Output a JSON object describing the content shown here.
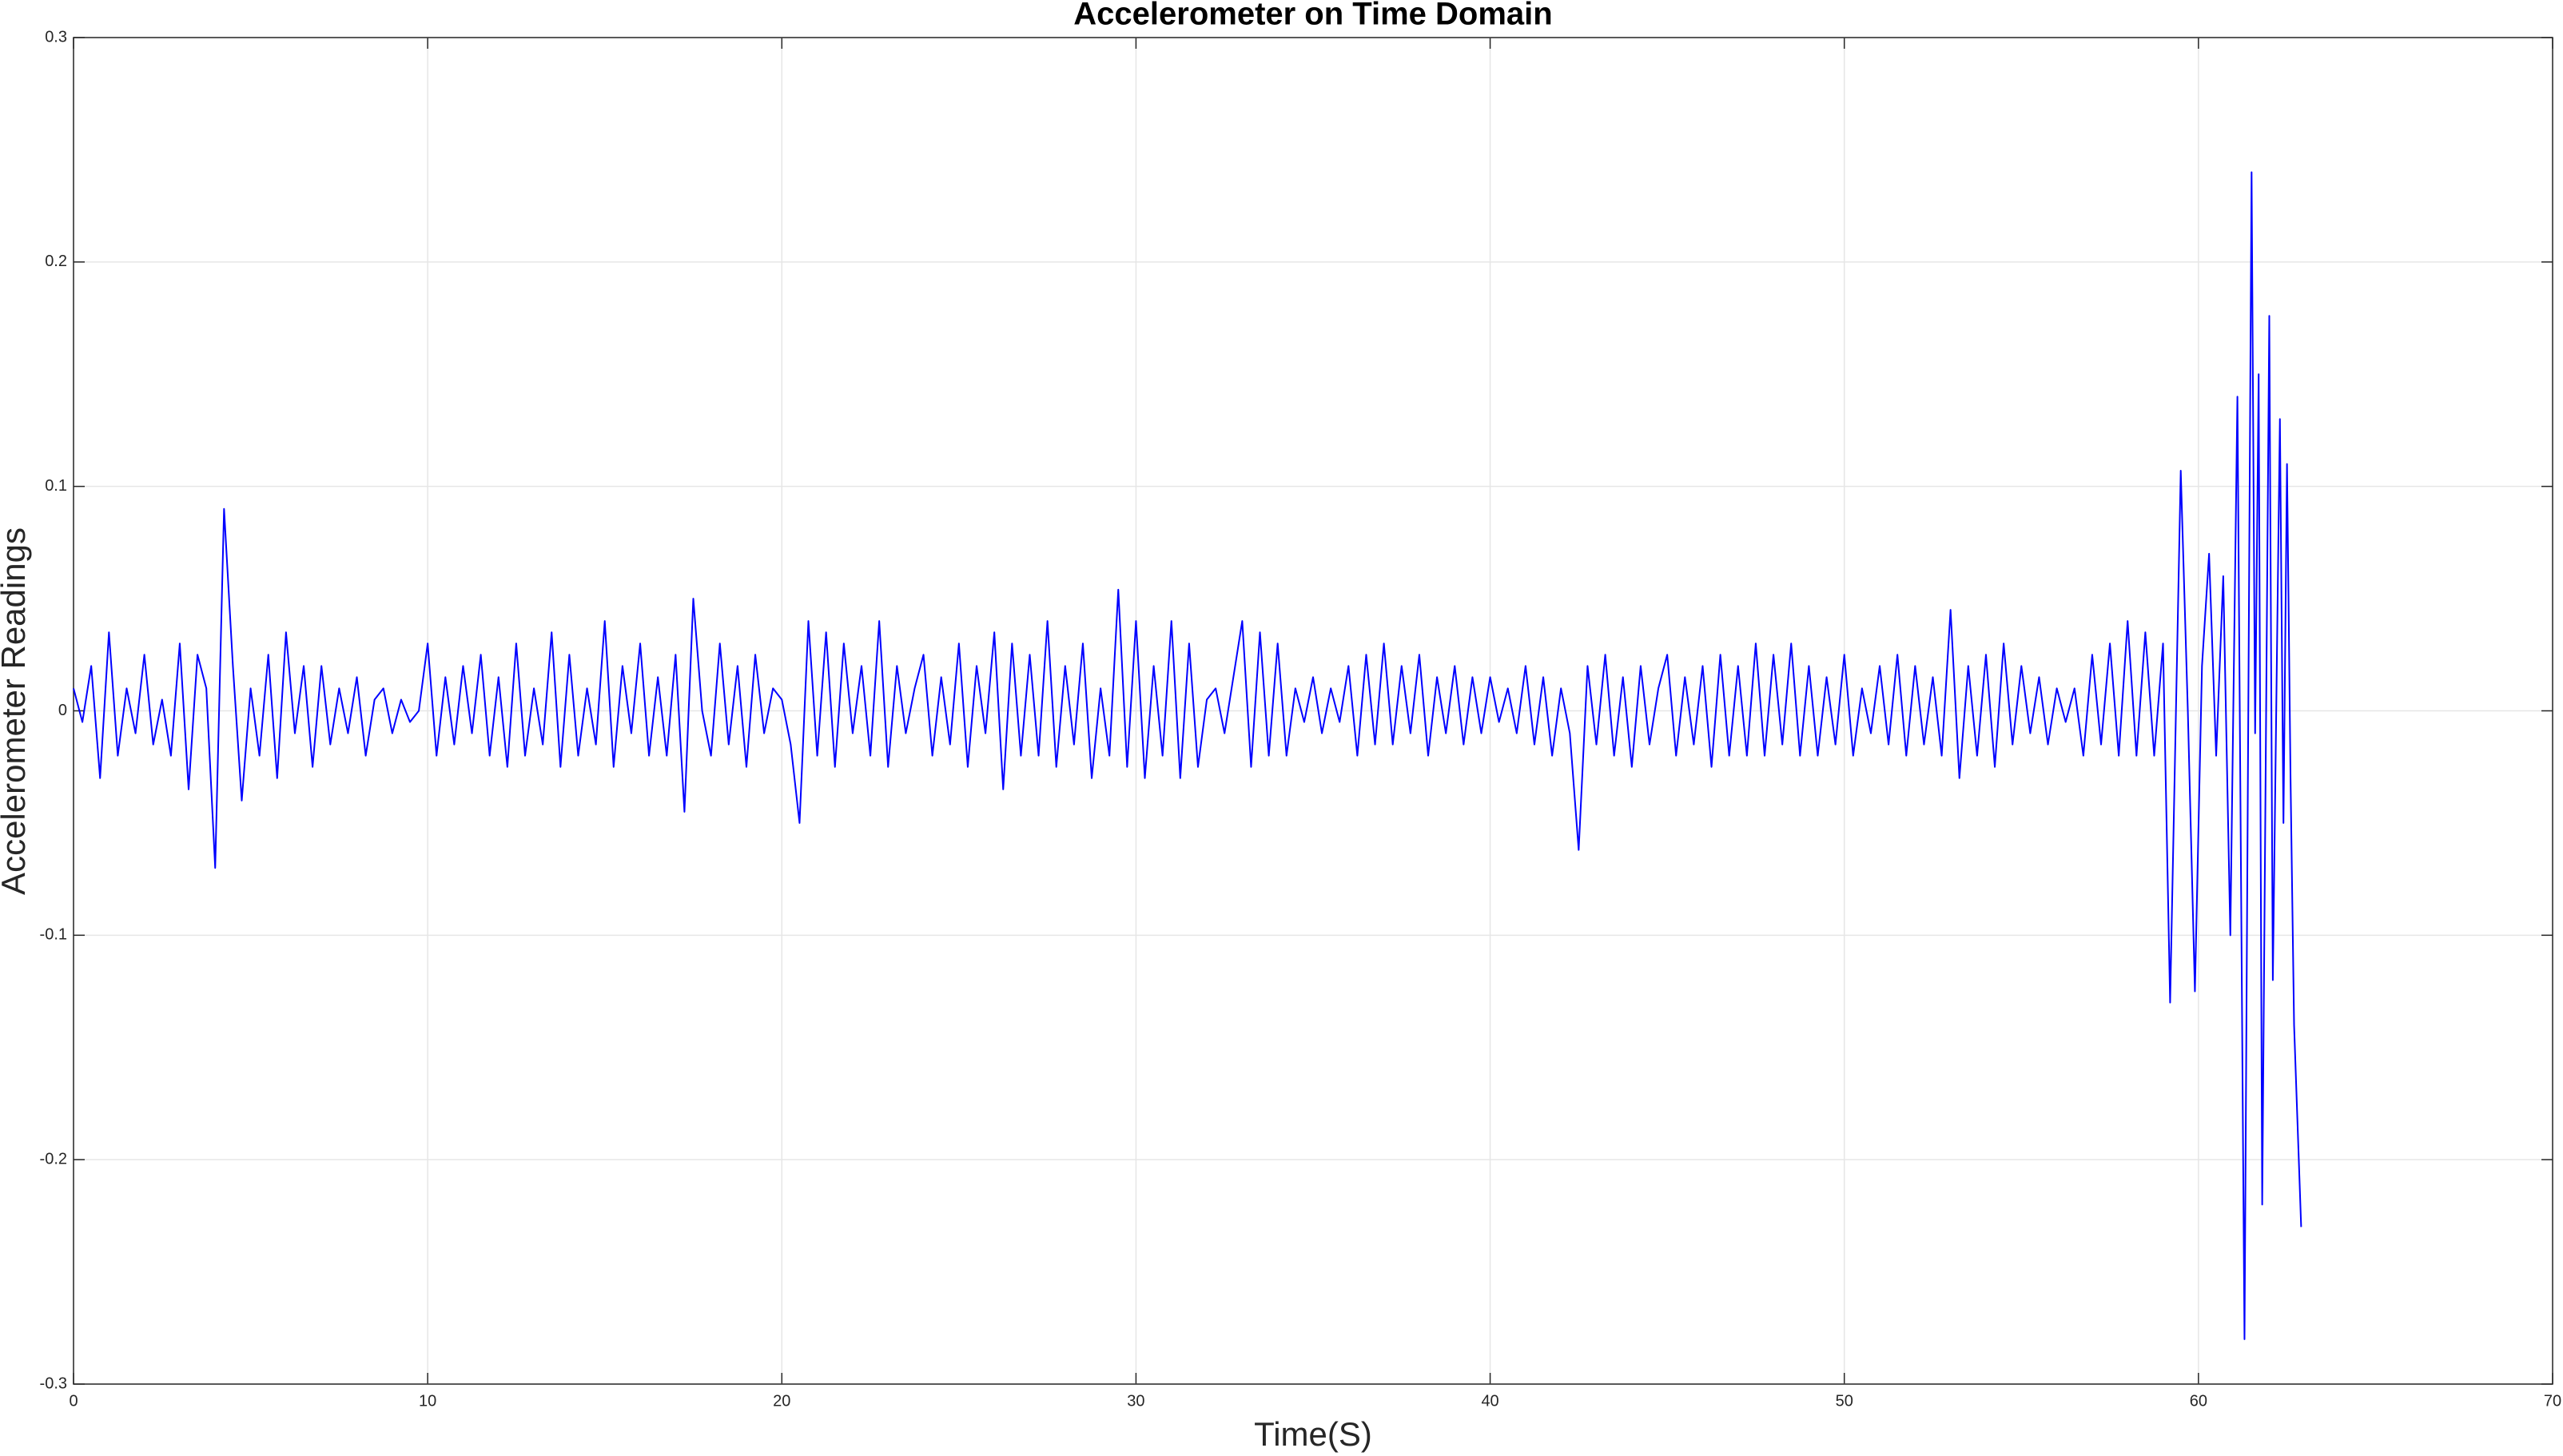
{
  "chart_data": {
    "type": "line",
    "title": "Accelerometer on Time Domain",
    "x_label": "Time(S)",
    "y_label": "Accelerometer Readings",
    "xlim": [
      0,
      70
    ],
    "xticks": [
      0,
      10,
      20,
      30,
      40,
      50,
      60,
      70
    ],
    "ylim": [
      -0.3,
      0.3
    ],
    "yticks": [
      -0.3,
      -0.2,
      -0.1,
      0,
      0.1,
      0.2,
      0.3
    ],
    "grid": true,
    "series": [
      {
        "color": "#0000ff",
        "x": [
          0,
          0.25,
          0.5,
          0.75,
          1,
          1.25,
          1.5,
          1.75,
          2,
          2.25,
          2.5,
          2.75,
          3,
          3.25,
          3.5,
          3.75,
          4,
          4.25,
          4.5,
          4.75,
          5,
          5.25,
          5.5,
          5.75,
          6,
          6.25,
          6.5,
          6.75,
          7,
          7.25,
          7.5,
          7.75,
          8,
          8.25,
          8.5,
          8.75,
          9,
          9.25,
          9.5,
          9.75,
          10,
          10.25,
          10.5,
          10.75,
          11,
          11.25,
          11.5,
          11.75,
          12,
          12.25,
          12.5,
          12.75,
          13,
          13.25,
          13.5,
          13.75,
          14,
          14.25,
          14.5,
          14.75,
          15,
          15.25,
          15.5,
          15.75,
          16,
          16.25,
          16.5,
          16.75,
          17,
          17.25,
          17.5,
          17.75,
          18,
          18.25,
          18.5,
          18.75,
          19,
          19.25,
          19.5,
          19.75,
          20,
          20.25,
          20.5,
          20.75,
          21,
          21.25,
          21.5,
          21.75,
          22,
          22.25,
          22.5,
          22.75,
          23,
          23.25,
          23.5,
          23.75,
          24,
          24.25,
          24.5,
          24.75,
          25,
          25.25,
          25.5,
          25.75,
          26,
          26.25,
          26.5,
          26.75,
          27,
          27.25,
          27.5,
          27.75,
          28,
          28.25,
          28.5,
          28.75,
          29,
          29.25,
          29.5,
          29.75,
          30,
          30.25,
          30.5,
          30.75,
          31,
          31.25,
          31.5,
          31.75,
          32,
          32.25,
          32.5,
          32.75,
          33,
          33.25,
          33.5,
          33.75,
          34,
          34.25,
          34.5,
          34.75,
          35,
          35.25,
          35.5,
          35.75,
          36,
          36.25,
          36.5,
          36.75,
          37,
          37.25,
          37.5,
          37.75,
          38,
          38.25,
          38.5,
          38.75,
          39,
          39.25,
          39.5,
          39.75,
          40,
          40.25,
          40.5,
          40.75,
          41,
          41.25,
          41.5,
          41.75,
          42,
          42.25,
          42.5,
          42.75,
          43,
          43.25,
          43.5,
          43.75,
          44,
          44.25,
          44.5,
          44.75,
          45,
          45.25,
          45.5,
          45.75,
          46,
          46.25,
          46.5,
          46.75,
          47,
          47.25,
          47.5,
          47.75,
          48,
          48.25,
          48.5,
          48.75,
          49,
          49.25,
          49.5,
          49.75,
          50,
          50.25,
          50.5,
          50.75,
          51,
          51.25,
          51.5,
          51.75,
          52,
          52.25,
          52.5,
          52.75,
          53,
          53.25,
          53.5,
          53.75,
          54,
          54.25,
          54.5,
          54.75,
          55,
          55.25,
          55.5,
          55.75,
          56,
          56.25,
          56.5,
          56.75,
          57,
          57.25,
          57.5,
          57.75,
          58,
          58.25,
          58.5,
          58.75,
          59,
          59.2,
          59.5,
          59.7,
          59.9,
          60.1,
          60.3,
          60.5,
          60.7,
          60.9,
          61.1,
          61.3,
          61.5,
          61.6,
          61.7,
          61.8,
          62,
          62.1,
          62.3,
          62.4,
          62.5,
          62.6,
          62.7,
          62.9
        ],
        "values": [
          0.01,
          -0.005,
          0.02,
          -0.03,
          0.035,
          -0.02,
          0.01,
          -0.01,
          0.025,
          -0.015,
          0.005,
          -0.02,
          0.03,
          -0.035,
          0.025,
          0.01,
          -0.07,
          0.09,
          0.02,
          -0.04,
          0.01,
          -0.02,
          0.025,
          -0.03,
          0.035,
          -0.01,
          0.02,
          -0.025,
          0.02,
          -0.015,
          0.01,
          -0.01,
          0.015,
          -0.02,
          0.005,
          0.01,
          -0.01,
          0.005,
          -0.005,
          0,
          0.03,
          -0.02,
          0.015,
          -0.015,
          0.02,
          -0.01,
          0.025,
          -0.02,
          0.015,
          -0.025,
          0.03,
          -0.02,
          0.01,
          -0.015,
          0.035,
          -0.025,
          0.025,
          -0.02,
          0.01,
          -0.015,
          0.04,
          -0.025,
          0.02,
          -0.01,
          0.03,
          -0.02,
          0.015,
          -0.02,
          0.025,
          -0.045,
          0.05,
          0,
          -0.02,
          0.03,
          -0.015,
          0.02,
          -0.025,
          0.025,
          -0.01,
          0.01,
          0.005,
          -0.015,
          -0.05,
          0.04,
          -0.02,
          0.035,
          -0.025,
          0.03,
          -0.01,
          0.02,
          -0.02,
          0.04,
          -0.025,
          0.02,
          -0.01,
          0.01,
          0.025,
          -0.02,
          0.015,
          -0.015,
          0.03,
          -0.025,
          0.02,
          -0.01,
          0.035,
          -0.035,
          0.03,
          -0.02,
          0.025,
          -0.02,
          0.04,
          -0.025,
          0.02,
          -0.015,
          0.03,
          -0.03,
          0.01,
          -0.02,
          0.054,
          -0.025,
          0.04,
          -0.03,
          0.02,
          -0.02,
          0.04,
          -0.03,
          0.03,
          -0.025,
          0.005,
          0.01,
          -0.01,
          0.015,
          0.04,
          -0.025,
          0.035,
          -0.02,
          0.03,
          -0.02,
          0.01,
          -0.005,
          0.015,
          -0.01,
          0.01,
          -0.005,
          0.02,
          -0.02,
          0.025,
          -0.015,
          0.03,
          -0.015,
          0.02,
          -0.01,
          0.025,
          -0.02,
          0.015,
          -0.01,
          0.02,
          -0.015,
          0.015,
          -0.01,
          0.015,
          -0.005,
          0.01,
          -0.01,
          0.02,
          -0.015,
          0.015,
          -0.02,
          0.01,
          -0.01,
          -0.062,
          0.02,
          -0.015,
          0.025,
          -0.02,
          0.015,
          -0.025,
          0.02,
          -0.015,
          0.01,
          0.025,
          -0.02,
          0.015,
          -0.015,
          0.02,
          -0.025,
          0.025,
          -0.02,
          0.02,
          -0.02,
          0.03,
          -0.02,
          0.025,
          -0.015,
          0.03,
          -0.02,
          0.02,
          -0.02,
          0.015,
          -0.015,
          0.025,
          -0.02,
          0.01,
          -0.01,
          0.02,
          -0.015,
          0.025,
          -0.02,
          0.02,
          -0.015,
          0.015,
          -0.02,
          0.045,
          -0.03,
          0.02,
          -0.02,
          0.025,
          -0.025,
          0.03,
          -0.015,
          0.02,
          -0.01,
          0.015,
          -0.015,
          0.01,
          -0.005,
          0.01,
          -0.02,
          0.025,
          -0.015,
          0.03,
          -0.02,
          0.04,
          -0.02,
          0.035,
          -0.02,
          0.03,
          -0.13,
          0.107,
          0,
          -0.125,
          0.02,
          0.07,
          -0.02,
          0.06,
          -0.1,
          0.14,
          -0.28,
          0.24,
          -0.01,
          0.15,
          -0.22,
          0.176,
          -0.12,
          0.13,
          -0.05,
          0.11,
          -0.03,
          -0.14,
          -0.23
        ]
      }
    ]
  }
}
